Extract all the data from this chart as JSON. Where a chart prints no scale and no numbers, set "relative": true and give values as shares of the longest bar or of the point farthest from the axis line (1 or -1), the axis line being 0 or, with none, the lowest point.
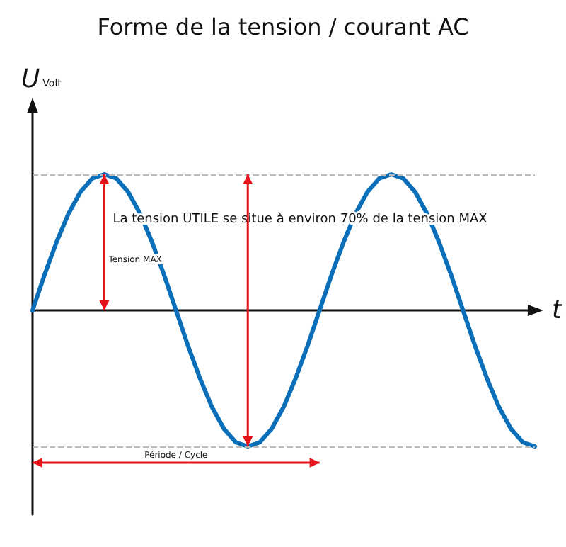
{
  "chart_data": {
    "type": "line",
    "title": "Forme de la tension / courant AC",
    "xlabel": "t",
    "ylabel": "U$_{Volt}$",
    "relative": true,
    "marker": "none",
    "line_style": "solid",
    "grid": false,
    "categories": [
      null,
      null,
      null,
      null,
      null,
      null,
      null,
      null,
      null,
      null,
      null,
      null,
      null,
      null,
      null,
      null,
      null,
      null,
      null,
      null,
      null,
      null,
      null,
      null,
      null,
      null,
      null,
      null,
      null,
      null,
      null,
      null,
      null,
      null,
      null,
      null,
      null,
      null,
      null,
      null,
      null,
      null,
      null
    ],
    "series": [
      {
        "color": "#0a6fb8",
        "values": [
          0,
          0.26,
          0.5,
          0.71,
          0.87,
          0.97,
          1,
          0.97,
          0.87,
          0.71,
          0.5,
          0.26,
          0,
          -0.26,
          -0.5,
          -0.71,
          -0.87,
          -0.97,
          -1,
          -0.97,
          -0.87,
          -0.71,
          -0.5,
          -0.26,
          0,
          0.26,
          0.5,
          0.71,
          0.87,
          0.97,
          1,
          0.97,
          0.87,
          0.71,
          0.5,
          0.26,
          0,
          -0.26,
          -0.5,
          -0.71,
          -0.87,
          -0.97,
          -1
        ]
      }
    ],
    "ref_lines": [
      {
        "axis": "y",
        "value": 1,
        "color": "#bbbbbb",
        "line_style": "dashed"
      },
      {
        "axis": "y",
        "value": -1,
        "color": "#bbbbbb",
        "line_style": "dashed"
      }
    ],
    "annotations": [
      "La tension UTILE se situe à environ 70% de la tension MAX",
      "Tension MAX",
      "Période / Cycle"
    ]
  }
}
